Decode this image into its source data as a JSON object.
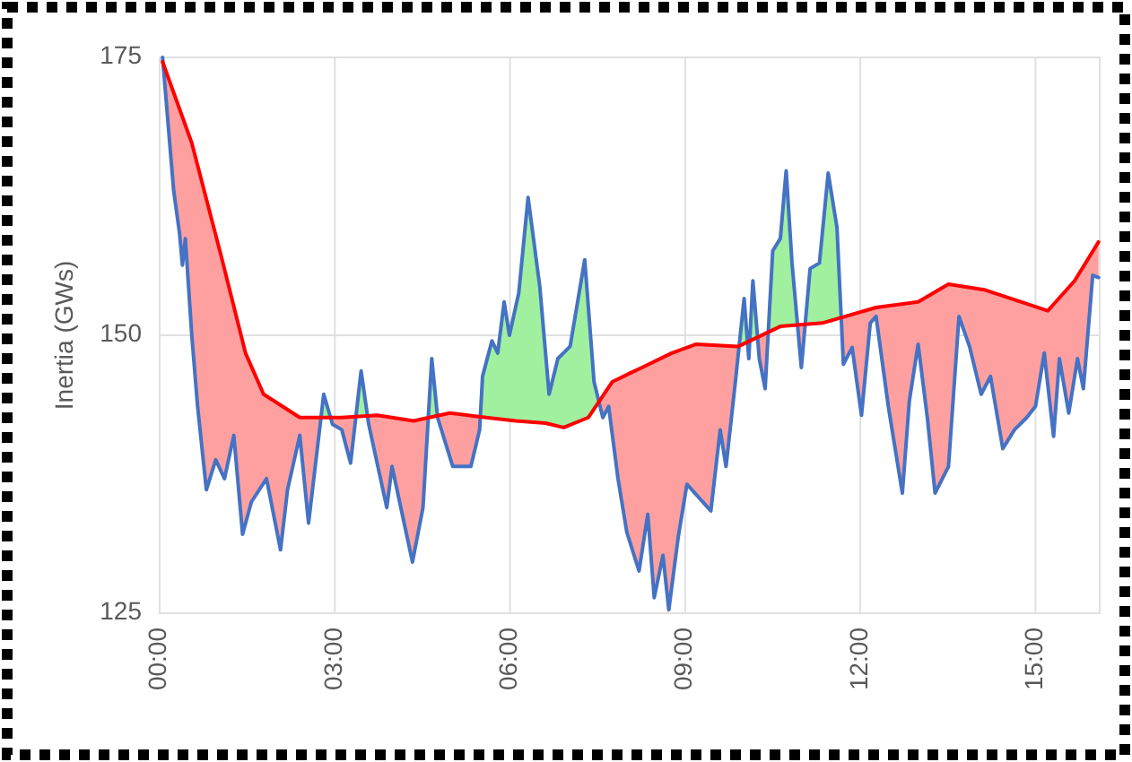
{
  "chart_data": {
    "type": "line",
    "ylabel": "Inertia (GWs)",
    "xlim": [
      0,
      16.1
    ],
    "ylim": [
      125,
      175
    ],
    "yticks": [
      125,
      150,
      175
    ],
    "xticks": [
      {
        "value": 0,
        "label": "00:00"
      },
      {
        "value": 3,
        "label": "03:00"
      },
      {
        "value": 6,
        "label": "06:00"
      },
      {
        "value": 9,
        "label": "09:00"
      },
      {
        "value": 12,
        "label": "12:00"
      },
      {
        "value": 15,
        "label": "15:00"
      }
    ],
    "grid": true,
    "marker": "none",
    "line_style": "solid",
    "series": [
      {
        "color": "#4472c4",
        "x": [
          0.05,
          0.24,
          0.34,
          0.39,
          0.44,
          0.55,
          0.65,
          0.8,
          0.96,
          1.11,
          1.27,
          1.42,
          1.57,
          1.83,
          2.07,
          2.19,
          2.4,
          2.55,
          2.81,
          2.96,
          3.12,
          3.27,
          3.45,
          3.58,
          3.89,
          3.98,
          4.33,
          4.51,
          4.66,
          4.76,
          5.02,
          5.33,
          5.48,
          5.53,
          5.69,
          5.79,
          5.9,
          5.99,
          6.15,
          6.31,
          6.51,
          6.67,
          6.82,
          7.03,
          7.28,
          7.44,
          7.59,
          7.69,
          7.85,
          8.0,
          8.21,
          8.36,
          8.47,
          8.62,
          8.72,
          8.88,
          9.03,
          9.44,
          9.6,
          9.7,
          9.86,
          10.01,
          10.09,
          10.16,
          10.27,
          10.37,
          10.5,
          10.63,
          10.73,
          10.83,
          10.99,
          11.14,
          11.3,
          11.45,
          11.6,
          11.71,
          11.86,
          12.02,
          12.17,
          12.27,
          12.48,
          12.72,
          12.84,
          12.99,
          13.15,
          13.28,
          13.51,
          13.69,
          13.87,
          14.07,
          14.23,
          14.44,
          14.64,
          14.85,
          15.0,
          15.15,
          15.31,
          15.41,
          15.57,
          15.72,
          15.82,
          15.98,
          16.08
        ],
        "values": [
          175,
          163,
          159.2,
          156.3,
          158.7,
          150,
          143.6,
          136.1,
          138.8,
          137.1,
          141,
          132.1,
          135,
          137.1,
          130.7,
          136.1,
          141,
          133.1,
          144.7,
          142,
          141.5,
          138.5,
          146.8,
          142,
          134.5,
          138.2,
          129.6,
          134.5,
          147.9,
          142.6,
          138.2,
          138.2,
          141.5,
          146.3,
          149.5,
          148.4,
          153,
          150,
          153.8,
          162.4,
          154.4,
          144.7,
          147.9,
          149,
          156.8,
          145.8,
          142.6,
          143.6,
          137.1,
          132.3,
          128.8,
          133.9,
          126.4,
          130.2,
          125.3,
          131.8,
          136.6,
          134.2,
          141.5,
          138.2,
          145.8,
          153.3,
          147.9,
          154.9,
          147.9,
          145.2,
          157.6,
          158.7,
          164.8,
          156.5,
          147.1,
          156,
          156.5,
          164.6,
          159.7,
          147.4,
          148.9,
          142.8,
          151.1,
          151.7,
          143.6,
          135.8,
          144.1,
          149.2,
          142.5,
          135.8,
          138.2,
          151.7,
          149,
          144.7,
          146.3,
          139.8,
          141.5,
          142.6,
          143.6,
          148.4,
          140.9,
          147.9,
          143,
          147.9,
          145.2,
          155.4,
          155.2
        ]
      },
      {
        "color": "#ff0000",
        "x": [
          0.05,
          0.55,
          1.06,
          1.47,
          1.78,
          2.4,
          3.12,
          3.73,
          4.35,
          4.97,
          5.59,
          6.1,
          6.61,
          6.92,
          7.34,
          7.75,
          8.06,
          8.26,
          8.77,
          9.19,
          9.91,
          10.63,
          11.35,
          12.27,
          12.99,
          13.51,
          14.12,
          15.21,
          15.67,
          16.08
        ],
        "values": [
          174.6,
          167.3,
          157,
          148.4,
          144.7,
          142.6,
          142.6,
          142.8,
          142.3,
          143,
          142.6,
          142.3,
          142.1,
          141.7,
          142.6,
          145.8,
          146.6,
          147.1,
          148.4,
          149.2,
          149,
          150.8,
          151.1,
          152.5,
          153,
          154.6,
          154.1,
          152.2,
          154.9,
          158.4
        ]
      }
    ]
  }
}
